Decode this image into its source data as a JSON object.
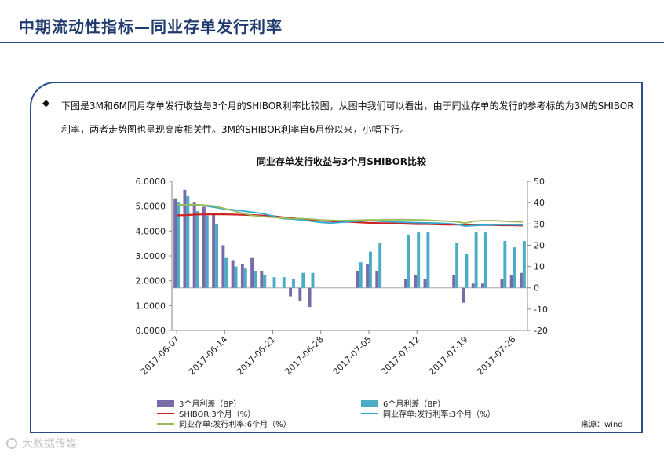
{
  "page": {
    "title": "中期流动性指标—同业存单发行利率",
    "bullet_symbol": "◆",
    "intro": "下图是3M和6M同月存单发行收益与3个月的SHIBOR利率比较图，从图中我们可以看出，由于同业存单的发行的参考标的为3M的SHIBOR利率，两者走势图也呈现高度相关性。3M的SHIBOR利率自6月份以来，小幅下行。",
    "source": "来源：wind",
    "watermark": "大数据传媒"
  },
  "colors": {
    "title": "#1f3a6e",
    "border": "#2b4a8c",
    "bar_3m": "#7b6aa8",
    "bar_6m": "#4bacc6",
    "shibor": "#cc2222",
    "ncd_3m": "#31a9cf",
    "ncd_6m": "#9bbb59"
  },
  "chart_data": {
    "type": "bar",
    "title": "同业存单发行收益与3个月SHIBOR比较",
    "x": [
      "2017-06-07",
      "2017-06-08",
      "2017-06-09",
      "2017-06-12",
      "2017-06-13",
      "2017-06-14",
      "2017-06-15",
      "2017-06-16",
      "2017-06-19",
      "2017-06-20",
      "2017-06-21",
      "2017-06-22",
      "2017-06-23",
      "2017-06-26",
      "2017-06-27",
      "2017-06-28",
      "2017-06-29",
      "2017-06-30",
      "2017-07-03",
      "2017-07-04",
      "2017-07-05",
      "2017-07-06",
      "2017-07-07",
      "2017-07-10",
      "2017-07-11",
      "2017-07-12",
      "2017-07-13",
      "2017-07-14",
      "2017-07-17",
      "2017-07-18",
      "2017-07-19",
      "2017-07-20",
      "2017-07-21",
      "2017-07-24",
      "2017-07-25",
      "2017-07-26",
      "2017-07-27"
    ],
    "tick_labels": [
      "2017-06-07",
      "2017-06-14",
      "2017-06-21",
      "2017-06-28",
      "2017-07-05",
      "2017-07-12",
      "2017-07-19",
      "2017-07-26"
    ],
    "tick_indices": [
      0,
      5,
      10,
      15,
      20,
      25,
      30,
      35
    ],
    "y_left": {
      "min": 0,
      "max": 6,
      "step": 1,
      "tick_labels": [
        "0.0000",
        "1.0000",
        "2.0000",
        "3.0000",
        "4.0000",
        "5.0000",
        "6.0000"
      ]
    },
    "y_right": {
      "min": -20,
      "max": 50,
      "step": 10,
      "tick_labels": [
        "-20",
        "-10",
        "0",
        "10",
        "20",
        "30",
        "40",
        "50"
      ]
    },
    "series": [
      {
        "name": "3个月利差（BP）",
        "kind": "bar",
        "axis": "right",
        "values": [
          42,
          46,
          40,
          38,
          35,
          20,
          13,
          11,
          14,
          8,
          0,
          0,
          -4,
          -6,
          -9,
          0,
          0,
          0,
          0,
          8,
          11,
          8,
          0,
          0,
          4,
          6,
          4,
          0,
          0,
          6,
          -7,
          2,
          2,
          0,
          4,
          6,
          7
        ]
      },
      {
        "name": "6个月利差（BP）",
        "kind": "bar",
        "axis": "right",
        "values": [
          40,
          43,
          36,
          34,
          30,
          14,
          10,
          9,
          8,
          6,
          5,
          5,
          4,
          7,
          7,
          0,
          0,
          0,
          0,
          12,
          17,
          21,
          0,
          0,
          25,
          26,
          26,
          0,
          0,
          21,
          16,
          26,
          26,
          0,
          22,
          19,
          22
        ]
      },
      {
        "name": "SHIBOR:3个月（%）",
        "kind": "line",
        "axis": "left",
        "values": [
          4.63,
          4.64,
          4.66,
          4.67,
          4.67,
          4.67,
          4.66,
          4.65,
          4.64,
          4.62,
          4.6,
          4.55,
          4.52,
          4.47,
          4.45,
          4.42,
          4.4,
          4.38,
          4.37,
          4.35,
          4.33,
          4.32,
          4.31,
          4.3,
          4.29,
          4.28,
          4.28,
          4.27,
          4.26,
          4.26,
          4.25,
          4.24,
          4.24,
          4.24,
          4.23,
          4.23,
          4.22
        ]
      },
      {
        "name": "同业存单:发行利率:3个月（%）",
        "kind": "line",
        "axis": "left",
        "values": [
          5.0,
          5.02,
          5.03,
          5.01,
          4.95,
          4.88,
          4.85,
          4.8,
          4.75,
          4.7,
          4.6,
          4.5,
          4.48,
          4.45,
          4.4,
          4.35,
          4.32,
          4.35,
          4.38,
          4.4,
          4.42,
          4.4,
          4.38,
          4.36,
          4.35,
          4.34,
          4.33,
          4.32,
          4.3,
          4.28,
          4.2,
          4.22,
          4.24,
          4.25,
          4.26,
          4.25,
          4.24
        ]
      },
      {
        "name": "同业存单:发行利率:6个月（%）",
        "kind": "line",
        "axis": "left",
        "values": [
          5.05,
          5.06,
          5.06,
          5.04,
          5.0,
          4.9,
          4.8,
          4.7,
          4.62,
          4.58,
          4.55,
          4.52,
          4.5,
          4.5,
          4.48,
          4.45,
          4.43,
          4.42,
          4.43,
          4.44,
          4.45,
          4.45,
          4.46,
          4.46,
          4.46,
          4.45,
          4.44,
          4.42,
          4.4,
          4.38,
          4.32,
          4.4,
          4.42,
          4.42,
          4.4,
          4.38,
          4.37
        ]
      }
    ],
    "legend": [
      {
        "label": "3个月利差（BP）",
        "type": "bar",
        "color": "#7b6aa8"
      },
      {
        "label": "6个月利差（BP）",
        "type": "bar",
        "color": "#4bacc6"
      },
      {
        "label": "SHIBOR:3个月（%）",
        "type": "line",
        "color": "#cc2222"
      },
      {
        "label": "同业存单:发行利率:3个月（%）",
        "type": "line",
        "color": "#31a9cf"
      },
      {
        "label": "同业存单:发行利率:6个月（%）",
        "type": "line",
        "color": "#9bbb59"
      }
    ],
    "legend_position": "bottom"
  }
}
